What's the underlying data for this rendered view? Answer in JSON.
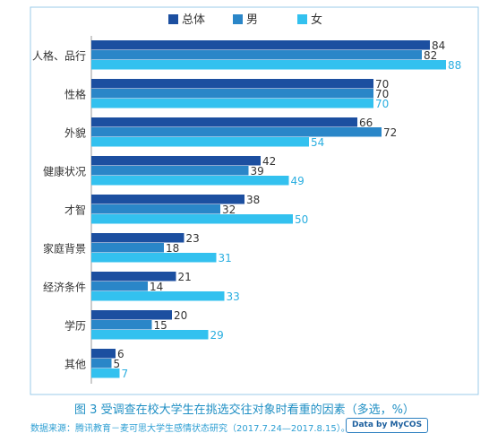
{
  "chart_data": {
    "type": "bar",
    "orientation": "horizontal",
    "categories": [
      "人格、品行",
      "性格",
      "外貌",
      "健康状况",
      "才智",
      "家庭背景",
      "经济条件",
      "学历",
      "其他"
    ],
    "series": [
      {
        "name": "总体",
        "values": [
          84,
          70,
          66,
          42,
          38,
          23,
          21,
          20,
          6
        ],
        "color": "#1c4fa0"
      },
      {
        "name": "男",
        "values": [
          82,
          70,
          72,
          39,
          32,
          18,
          14,
          15,
          5
        ],
        "color": "#2a86c8"
      },
      {
        "name": "女",
        "values": [
          88,
          70,
          54,
          49,
          50,
          31,
          33,
          29,
          7
        ],
        "color": "#33c1ef"
      }
    ],
    "xlim": [
      0,
      88
    ],
    "legend_position": "top-center",
    "grid": false,
    "caption": "图 3  受调查在校大学生在挑选交往对象时看重的因素（多选，%）",
    "source": "数据来源：腾讯教育－麦可思大学生感情状态研究（2017.7.24—2017.8.15）。",
    "badge": "Data by MyCOS"
  }
}
